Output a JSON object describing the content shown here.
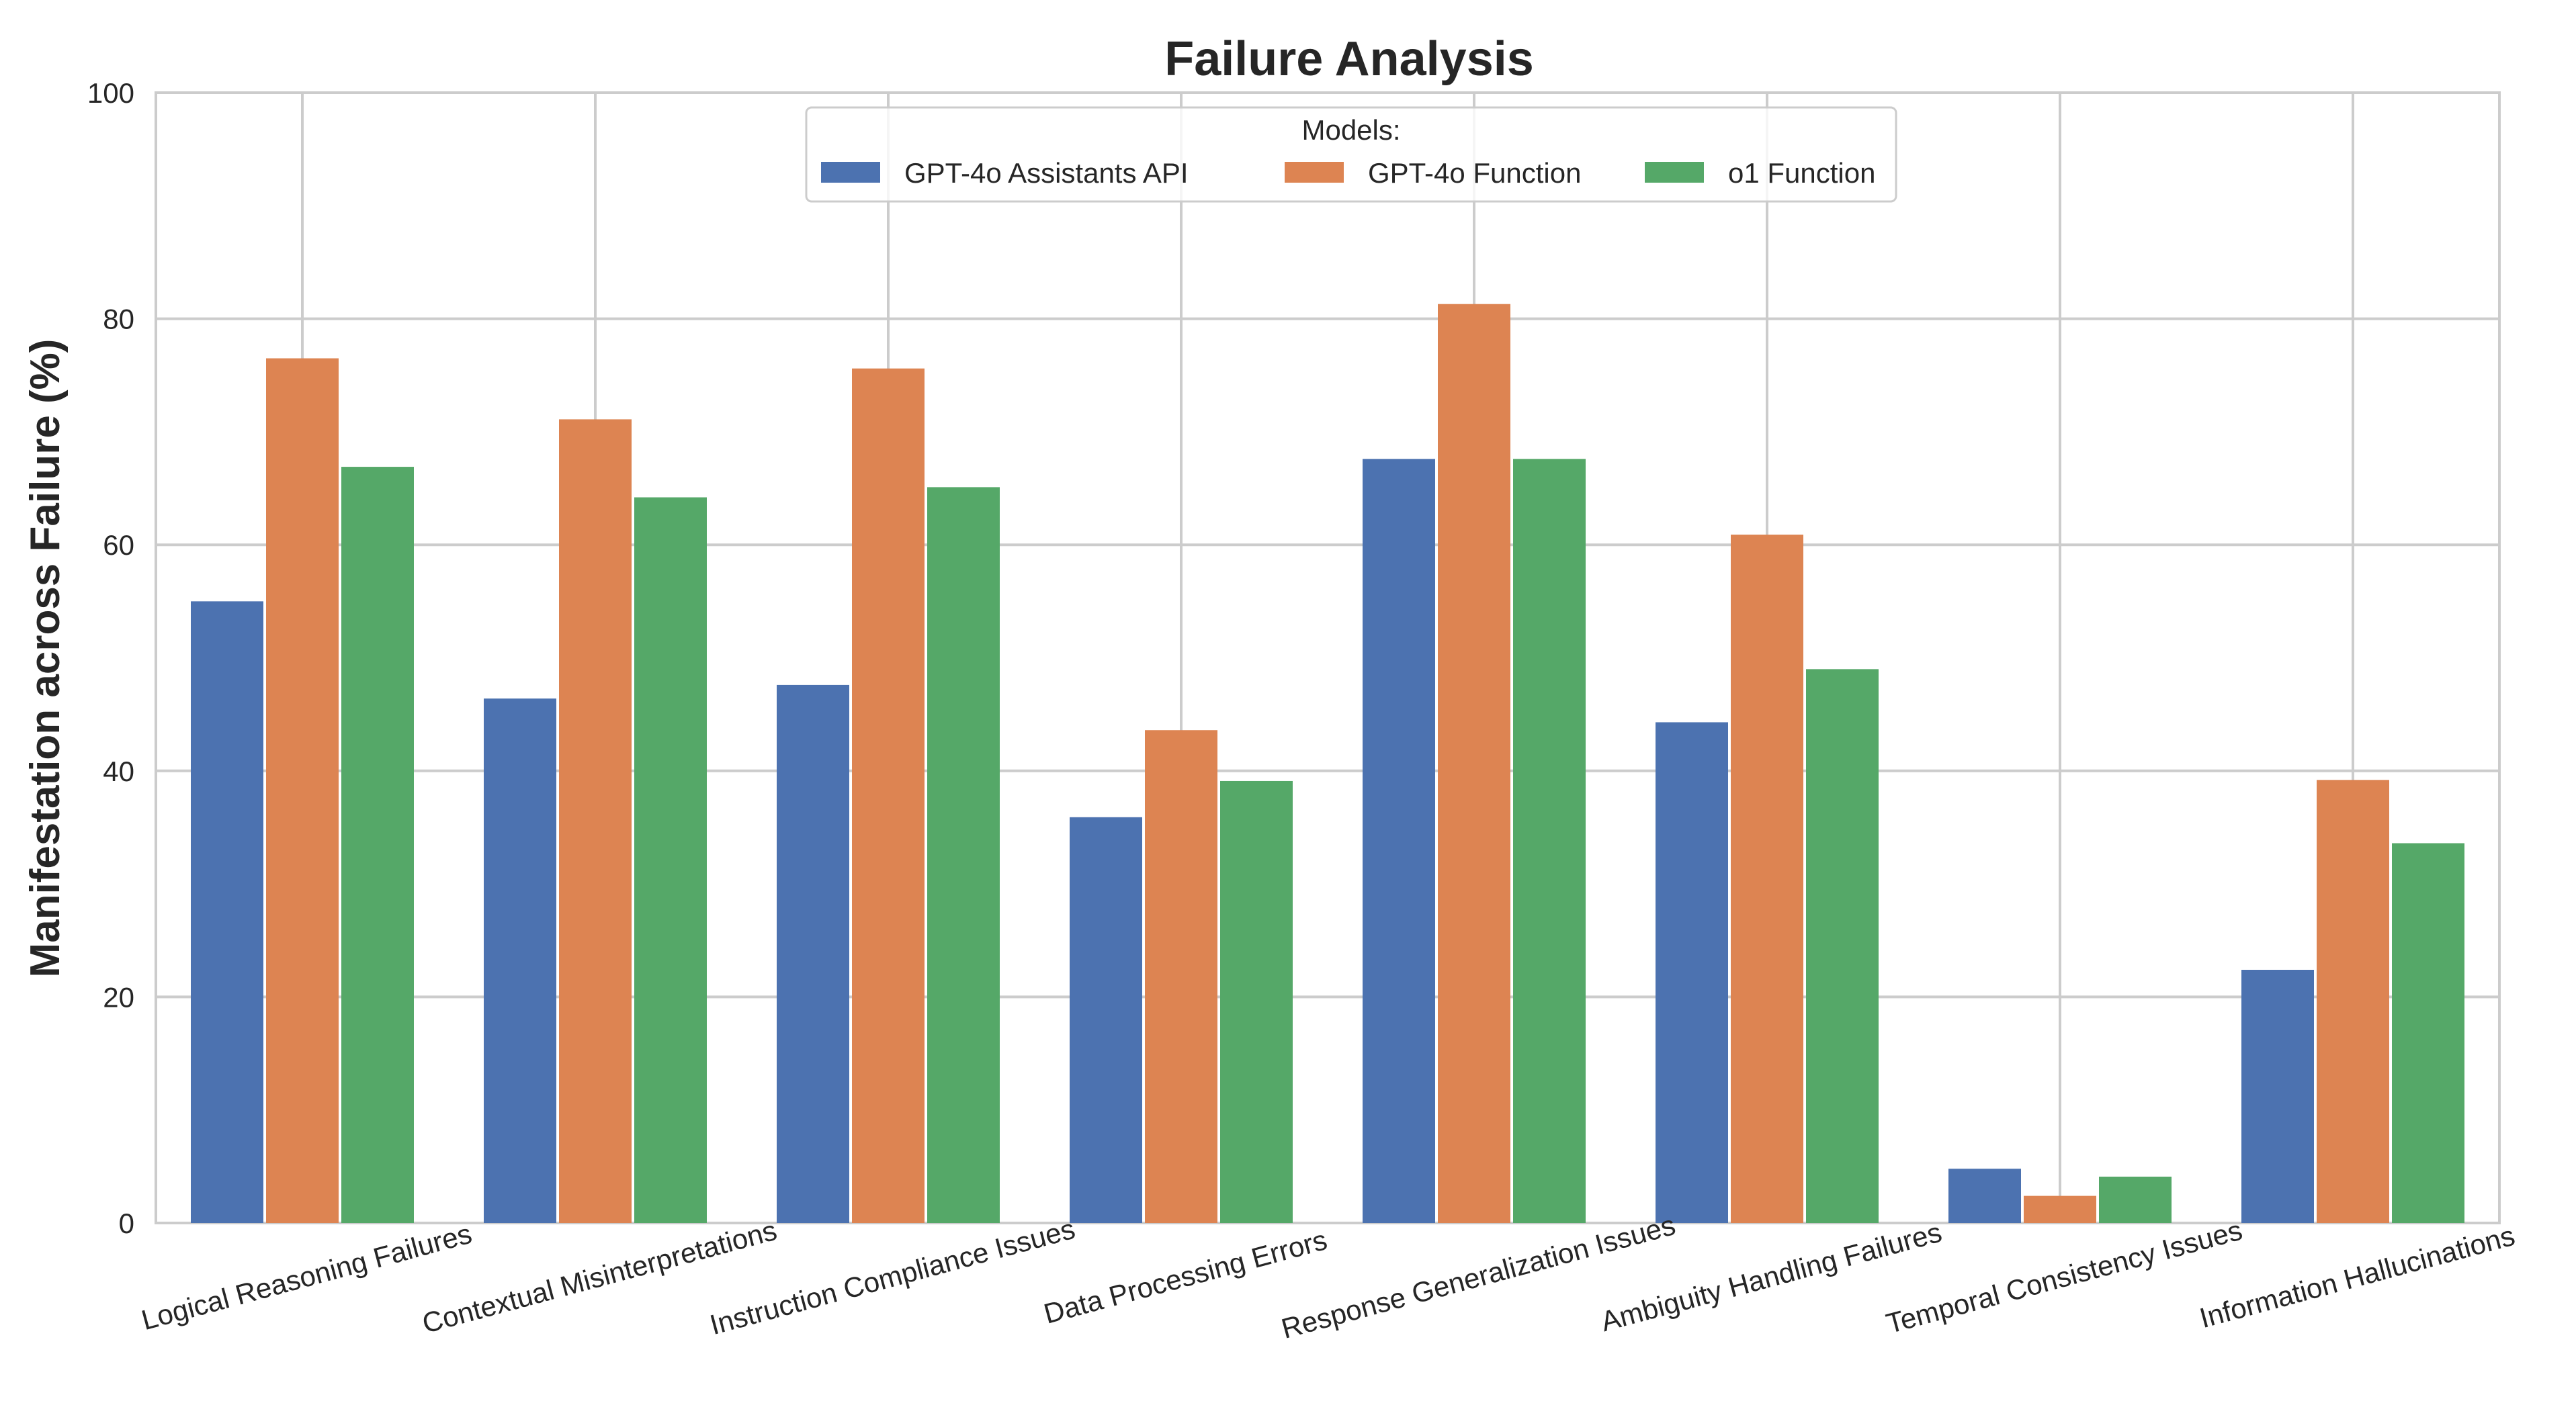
{
  "chart_data": {
    "type": "bar",
    "title": "Failure Analysis",
    "xlabel": "",
    "ylabel": "Manifestation across Failure (%)",
    "ylim": [
      0,
      100
    ],
    "yticks": [
      0,
      20,
      40,
      60,
      80,
      100
    ],
    "grid": true,
    "legend": {
      "title": "Models:",
      "placement": "top-center"
    },
    "categories": [
      "Logical Reasoning Failures",
      "Contextual Misinterpretations",
      "Instruction Compliance Issues",
      "Data Processing Errors",
      "Response Generalization Issues",
      "Ambiguity Handling Failures",
      "Temporal Consistency Issues",
      "Information Hallucinations"
    ],
    "series": [
      {
        "name": "GPT-4o Assistants API",
        "color": "#4c72b0",
        "values": [
          55.0,
          46.4,
          47.6,
          35.9,
          67.6,
          44.3,
          4.8,
          22.4
        ]
      },
      {
        "name": "GPT-4o Function",
        "color": "#dd8452",
        "values": [
          76.5,
          71.1,
          75.6,
          43.6,
          81.3,
          60.9,
          2.4,
          39.2
        ]
      },
      {
        "name": "o1 Function",
        "color": "#55a868",
        "values": [
          66.9,
          64.2,
          65.1,
          39.1,
          67.6,
          49.0,
          4.1,
          33.6
        ]
      }
    ]
  }
}
